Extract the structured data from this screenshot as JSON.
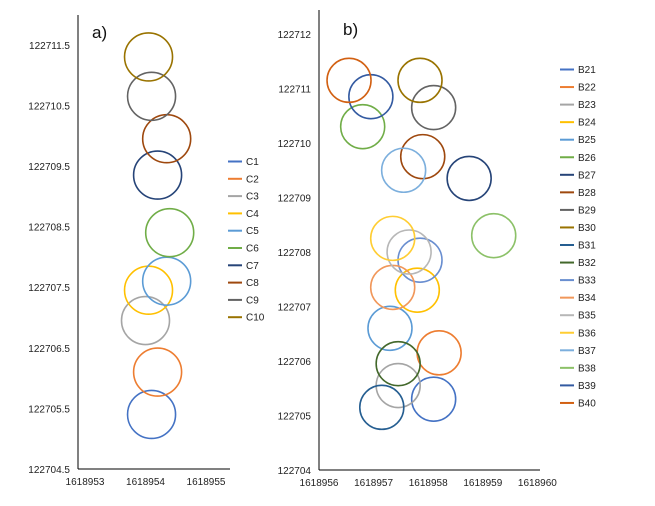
{
  "chart_data": [
    {
      "type": "scatter",
      "panel_label": "a)",
      "marker": "circle",
      "xlim": [
        1618953,
        1618955.5
      ],
      "ylim": [
        122704.5,
        122712.0
      ],
      "xticks": [
        1618953,
        1618954,
        1618955
      ],
      "yticks": [
        122704.5,
        122705.5,
        122706.5,
        122707.5,
        122708.5,
        122709.5,
        122710.5,
        122711.5
      ],
      "xticklabels": [
        "1618953",
        "1618954",
        "1618955"
      ],
      "yticklabels": [
        "122704.5",
        "122705.5",
        "122706.5",
        "122707.5",
        "122708.5",
        "122709.5",
        "122710.5",
        "122711.5"
      ],
      "circle_radius": 0.4,
      "series": [
        {
          "name": "C1",
          "color": "#4472C4",
          "x": 1618954.1,
          "y": 122705.4
        },
        {
          "name": "C2",
          "color": "#ED7D31",
          "x": 1618954.2,
          "y": 122706.1
        },
        {
          "name": "C3",
          "color": "#A5A5A5",
          "x": 1618954.0,
          "y": 122706.95
        },
        {
          "name": "C4",
          "color": "#FFC000",
          "x": 1618954.05,
          "y": 122707.45
        },
        {
          "name": "C5",
          "color": "#5B9BD5",
          "x": 1618954.35,
          "y": 122707.6
        },
        {
          "name": "C6",
          "color": "#70AD47",
          "x": 1618954.4,
          "y": 122708.4
        },
        {
          "name": "C7",
          "color": "#264478",
          "x": 1618954.2,
          "y": 122709.35
        },
        {
          "name": "C8",
          "color": "#9E480E",
          "x": 1618954.35,
          "y": 122709.95
        },
        {
          "name": "C9",
          "color": "#636363",
          "x": 1618954.1,
          "y": 122710.65
        },
        {
          "name": "C10",
          "color": "#997300",
          "x": 1618954.05,
          "y": 122711.3
        }
      ]
    },
    {
      "type": "scatter",
      "panel_label": "b)",
      "marker": "circle",
      "xlim": [
        1618956,
        1618960
      ],
      "ylim": [
        122704,
        122712
      ],
      "xticks": [
        1618956,
        1618957,
        1618958,
        1618959,
        1618960
      ],
      "yticks": [
        122704,
        122705,
        122706,
        122707,
        122708,
        122709,
        122710,
        122711,
        122712
      ],
      "xticklabels": [
        "1618956",
        "1618957",
        "1618958",
        "1618959",
        "1618960"
      ],
      "yticklabels": [
        "122704",
        "122705",
        "122706",
        "122707",
        "122708",
        "122709",
        "122710",
        "122711",
        "122712"
      ],
      "circle_radius": 0.4,
      "series": [
        {
          "name": "B21",
          "color": "#4472C4",
          "x": 1618958.1,
          "y": 122705.3
        },
        {
          "name": "B22",
          "color": "#ED7D31",
          "x": 1618958.2,
          "y": 122706.15
        },
        {
          "name": "B23",
          "color": "#A5A5A5",
          "x": 1618957.45,
          "y": 122705.55
        },
        {
          "name": "B24",
          "color": "#FFC000",
          "x": 1618957.8,
          "y": 122707.3
        },
        {
          "name": "B25",
          "color": "#5B9BD5",
          "x": 1618957.3,
          "y": 122706.6
        },
        {
          "name": "B26",
          "color": "#70AD47",
          "x": 1618956.8,
          "y": 122710.3
        },
        {
          "name": "B27",
          "color": "#264478",
          "x": 1618958.75,
          "y": 122709.35
        },
        {
          "name": "B28",
          "color": "#9E480E",
          "x": 1618957.9,
          "y": 122709.75
        },
        {
          "name": "B29",
          "color": "#636363",
          "x": 1618958.1,
          "y": 122710.65
        },
        {
          "name": "B30",
          "color": "#997300",
          "x": 1618957.85,
          "y": 122711.15
        },
        {
          "name": "B31",
          "color": "#255E91",
          "x": 1618957.15,
          "y": 122705.15
        },
        {
          "name": "B32",
          "color": "#43682B",
          "x": 1618957.45,
          "y": 122705.95
        },
        {
          "name": "B33",
          "color": "#698ED0",
          "x": 1618957.85,
          "y": 122707.85
        },
        {
          "name": "B34",
          "color": "#F1975A",
          "x": 1618957.35,
          "y": 122707.35
        },
        {
          "name": "B35",
          "color": "#B7B7B7",
          "x": 1618957.65,
          "y": 122708.0
        },
        {
          "name": "B36",
          "color": "#FFCD33",
          "x": 1618957.35,
          "y": 122708.25
        },
        {
          "name": "B37",
          "color": "#7CAFDD",
          "x": 1618957.55,
          "y": 122709.5
        },
        {
          "name": "B38",
          "color": "#8CC168",
          "x": 1618959.2,
          "y": 122708.3
        },
        {
          "name": "B39",
          "color": "#335AA1",
          "x": 1618956.95,
          "y": 122710.85
        },
        {
          "name": "B40",
          "color": "#D26012",
          "x": 1618956.55,
          "y": 122711.15
        }
      ]
    }
  ]
}
